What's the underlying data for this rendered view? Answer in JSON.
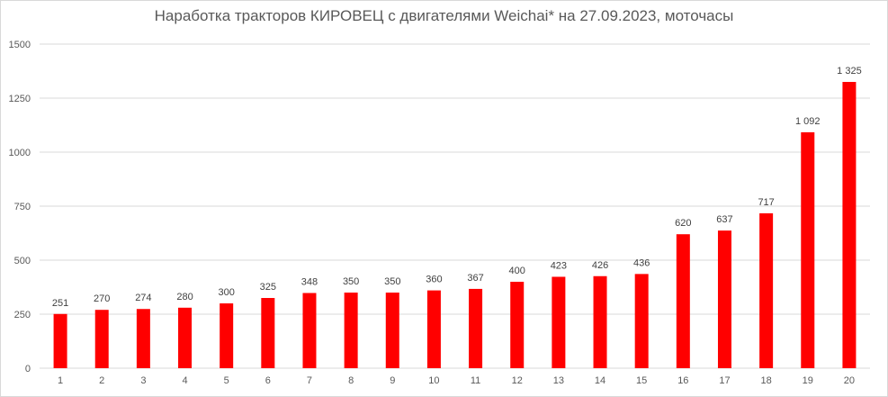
{
  "chart_data": {
    "type": "bar",
    "title": "Наработка тракторов КИРОВЕЦ с двигателями Weichai* на 27.09.2023, моточасы",
    "xlabel": "",
    "ylabel": "",
    "categories": [
      "1",
      "2",
      "3",
      "4",
      "5",
      "6",
      "7",
      "8",
      "9",
      "10",
      "11",
      "12",
      "13",
      "14",
      "15",
      "16",
      "17",
      "18",
      "19",
      "20"
    ],
    "values": [
      251,
      270,
      274,
      280,
      300,
      325,
      348,
      350,
      350,
      360,
      367,
      400,
      423,
      426,
      436,
      620,
      637,
      717,
      1092,
      1325
    ],
    "data_labels": [
      "251",
      "270",
      "274",
      "280",
      "300",
      "325",
      "348",
      "350",
      "350",
      "360",
      "367",
      "400",
      "423",
      "426",
      "436",
      "620",
      "637",
      "717",
      "1 092",
      "1 325"
    ],
    "ylim": [
      0,
      1500
    ],
    "yticks": [
      0,
      250,
      500,
      750,
      1000,
      1250,
      1500
    ],
    "ytick_labels": [
      "0",
      "250",
      "500",
      "750",
      "1000",
      "1250",
      "1500"
    ],
    "grid": true,
    "legend": "none",
    "bar_color": "#ff0000",
    "grid_color": "#d9d9d9",
    "text_color": "#595959"
  }
}
